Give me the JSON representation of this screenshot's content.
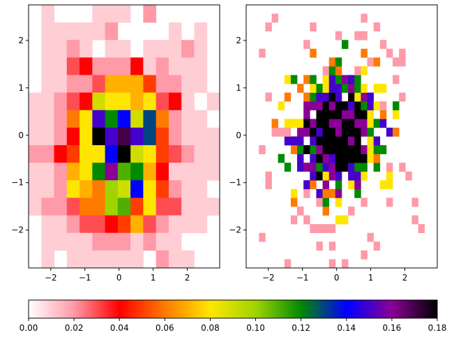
{
  "chart_data": [
    {
      "type": "heatmap",
      "panel": "left",
      "title": "",
      "xlabel": "",
      "ylabel": "",
      "xlim": [
        -2.65,
        2.95
      ],
      "ylim": [
        -2.8,
        2.75
      ],
      "x_ticks": [
        -2,
        -1,
        0,
        1,
        2
      ],
      "y_ticks": [
        -2,
        -1,
        0,
        1,
        2
      ],
      "x_tick_labels": [
        "−2",
        "−1",
        "0",
        "1",
        "2"
      ],
      "y_tick_labels": [
        "−2",
        "−1",
        "0",
        "1",
        "2"
      ],
      "grid": false,
      "bin_x_edges": [
        -2.65,
        -2.277,
        -1.903,
        -1.53,
        -1.157,
        -0.783,
        -0.41,
        -0.037,
        0.337,
        0.71,
        1.083,
        1.457,
        1.83,
        2.203,
        2.577,
        2.95
      ],
      "bin_y_edges": [
        -2.8,
        -2.43,
        -2.06,
        -1.69,
        -1.32,
        -0.95,
        -0.58,
        -0.21,
        0.16,
        0.53,
        0.9,
        1.27,
        1.64,
        2.01,
        2.38,
        2.75
      ],
      "values_top_to_bottom": [
        [
          0,
          0.01,
          0,
          0,
          0,
          0.01,
          0.01,
          0.01,
          0,
          0.02,
          0,
          0,
          0,
          0,
          0
        ],
        [
          0,
          0.01,
          0.01,
          0.01,
          0.01,
          0.01,
          0.02,
          0,
          0,
          0,
          0,
          0.01,
          0,
          0.01,
          0
        ],
        [
          0,
          0.01,
          0.01,
          0.02,
          0.01,
          0,
          0.01,
          0.01,
          0,
          0.01,
          0.01,
          0.01,
          0.02,
          0.01,
          0
        ],
        [
          0,
          0.01,
          0.01,
          0.03,
          0.04,
          0.02,
          0.02,
          0.02,
          0.04,
          0.01,
          0.02,
          0.01,
          0.01,
          0.01,
          0
        ],
        [
          0,
          0.01,
          0.01,
          0.02,
          0.02,
          0.03,
          0.07,
          0.07,
          0.07,
          0.05,
          0.02,
          0.02,
          0.01,
          0.01,
          0
        ],
        [
          0.01,
          0.01,
          0.02,
          0.03,
          0.04,
          0.09,
          0.08,
          0.08,
          0.07,
          0.08,
          0.03,
          0.04,
          0.01,
          0,
          0.01
        ],
        [
          0.01,
          0.01,
          0.02,
          0.06,
          0.08,
          0.15,
          0.12,
          0.14,
          0.09,
          0.13,
          0.06,
          0.02,
          0.01,
          0.01,
          0
        ],
        [
          0.01,
          0.01,
          0.02,
          0.04,
          0.08,
          0.18,
          0.15,
          0.17,
          0.15,
          0.13,
          0.05,
          0.02,
          0.01,
          0.01,
          0.01
        ],
        [
          0.02,
          0.02,
          0.04,
          0.05,
          0.08,
          0.08,
          0.14,
          0.18,
          0.09,
          0.08,
          0.05,
          0.03,
          0.02,
          0.01,
          0.01
        ],
        [
          0.01,
          0.01,
          0.02,
          0.07,
          0.08,
          0.12,
          0.16,
          0.11,
          0.12,
          0.07,
          0.04,
          0.01,
          0.01,
          0.01,
          0.01
        ],
        [
          0.01,
          0.01,
          0.02,
          0.08,
          0.07,
          0.06,
          0.1,
          0.09,
          0.14,
          0.08,
          0.05,
          0.02,
          0.01,
          0.01,
          0
        ],
        [
          0.01,
          0.02,
          0.02,
          0.03,
          0.06,
          0.06,
          0.1,
          0.11,
          0.05,
          0.08,
          0.03,
          0.03,
          0.01,
          0.01,
          0.01
        ],
        [
          0,
          0.01,
          0.01,
          0.02,
          0.03,
          0.03,
          0.04,
          0.05,
          0.07,
          0.03,
          0.02,
          0.01,
          0.01,
          0.01,
          0
        ],
        [
          0,
          0.01,
          0.01,
          0.01,
          0.01,
          0.02,
          0.02,
          0.02,
          0.01,
          0.02,
          0.01,
          0.01,
          0,
          0,
          0
        ],
        [
          0,
          0.01,
          0,
          0.01,
          0.01,
          0.01,
          0.01,
          0.01,
          0.01,
          0,
          0.02,
          0.01,
          0.01,
          0,
          0
        ]
      ],
      "colormap": "gist_ncar-like (white → pink → red → orange → yellow → green → blue → purple → black)",
      "colormap_stops": [
        {
          "v": 0.0,
          "color": "#ffffff"
        },
        {
          "v": 0.02,
          "color": "#ff9aa8"
        },
        {
          "v": 0.04,
          "color": "#ff0000"
        },
        {
          "v": 0.06,
          "color": "#ff7a00"
        },
        {
          "v": 0.08,
          "color": "#ffe600"
        },
        {
          "v": 0.1,
          "color": "#9fd400"
        },
        {
          "v": 0.12,
          "color": "#008a00"
        },
        {
          "v": 0.14,
          "color": "#0000ff"
        },
        {
          "v": 0.16,
          "color": "#8a0096"
        },
        {
          "v": 0.18,
          "color": "#000000"
        }
      ]
    },
    {
      "type": "heatmap",
      "panel": "right",
      "title": "",
      "xlabel": "",
      "ylabel": "",
      "xlim": [
        -2.65,
        2.95
      ],
      "ylim": [
        -2.8,
        2.75
      ],
      "x_ticks": [
        -2,
        -1,
        0,
        1,
        2
      ],
      "y_ticks": [
        -2,
        -1,
        0,
        1,
        2
      ],
      "x_tick_labels": [
        "−2",
        "−1",
        "0",
        "1",
        "2"
      ],
      "y_tick_labels": [
        "−2",
        "−1",
        "0",
        "1",
        "2"
      ],
      "grid": false,
      "bins": [
        30,
        30
      ],
      "note_values": "fine-bin density with same colormap; sparse pink cells at edges, dense black/blue/purple/green/yellow cells near origin"
    }
  ],
  "colorbar": {
    "orientation": "horizontal",
    "ticks": [
      0.0,
      0.02,
      0.04,
      0.06,
      0.08,
      0.1,
      0.12,
      0.14,
      0.16,
      0.18
    ],
    "tick_labels": [
      "0.00",
      "0.02",
      "0.04",
      "0.06",
      "0.08",
      "0.10",
      "0.12",
      "0.14",
      "0.16",
      "0.18"
    ],
    "range": [
      0.0,
      0.18
    ]
  }
}
